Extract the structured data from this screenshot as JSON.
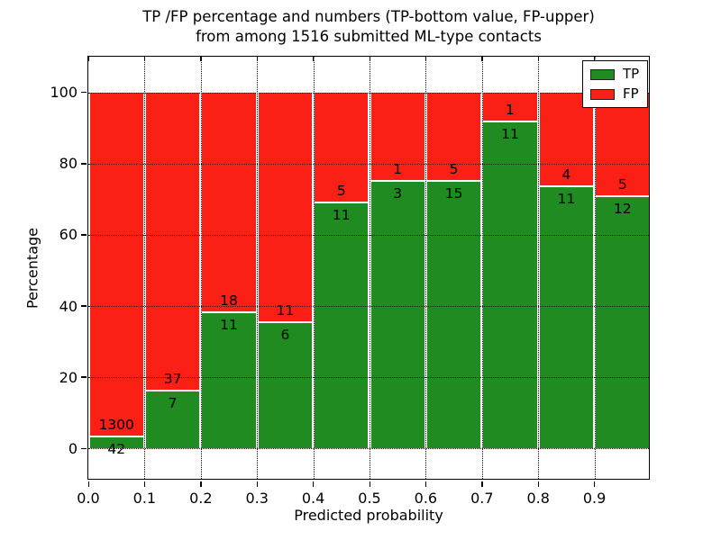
{
  "figure": {
    "title_line1": "TP /FP percentage and numbers (TP-bottom value, FP-upper)",
    "title_line2": "from among 1516 submitted ML-type contacts"
  },
  "chart_data": {
    "type": "bar",
    "stacked": true,
    "normalized_to_percent": true,
    "title": "TP /FP percentage and numbers (TP-bottom value, FP-upper) from among 1516 submitted ML-type contacts",
    "xlabel": "Predicted probability",
    "ylabel": "Percentage",
    "total_contacts": 1516,
    "bin_width": 0.1,
    "categories": [
      "0.0-0.1",
      "0.1-0.2",
      "0.2-0.3",
      "0.3-0.4",
      "0.4-0.5",
      "0.5-0.6",
      "0.6-0.7",
      "0.7-0.8",
      "0.8-0.9",
      "0.9-1.0"
    ],
    "series": [
      {
        "name": "TP",
        "color": "#208b20",
        "counts": [
          42,
          7,
          11,
          6,
          11,
          3,
          15,
          11,
          11,
          12
        ]
      },
      {
        "name": "FP",
        "color": "#fb2016",
        "counts": [
          1300,
          37,
          18,
          11,
          5,
          1,
          5,
          1,
          4,
          5
        ]
      }
    ],
    "tp_percent": [
      3.13,
      15.91,
      37.93,
      35.29,
      68.75,
      75.0,
      75.0,
      91.67,
      73.33,
      70.59
    ],
    "x_tick_labels": [
      "0.0",
      "0.1",
      "0.2",
      "0.3",
      "0.4",
      "0.5",
      "0.6",
      "0.7",
      "0.8",
      "0.9"
    ],
    "y_ticks": [
      0,
      20,
      40,
      60,
      80,
      100
    ],
    "xlim": [
      0.0,
      1.0
    ],
    "ylim": [
      -9,
      110
    ],
    "grid": "dotted",
    "legend_position": "upper right"
  }
}
